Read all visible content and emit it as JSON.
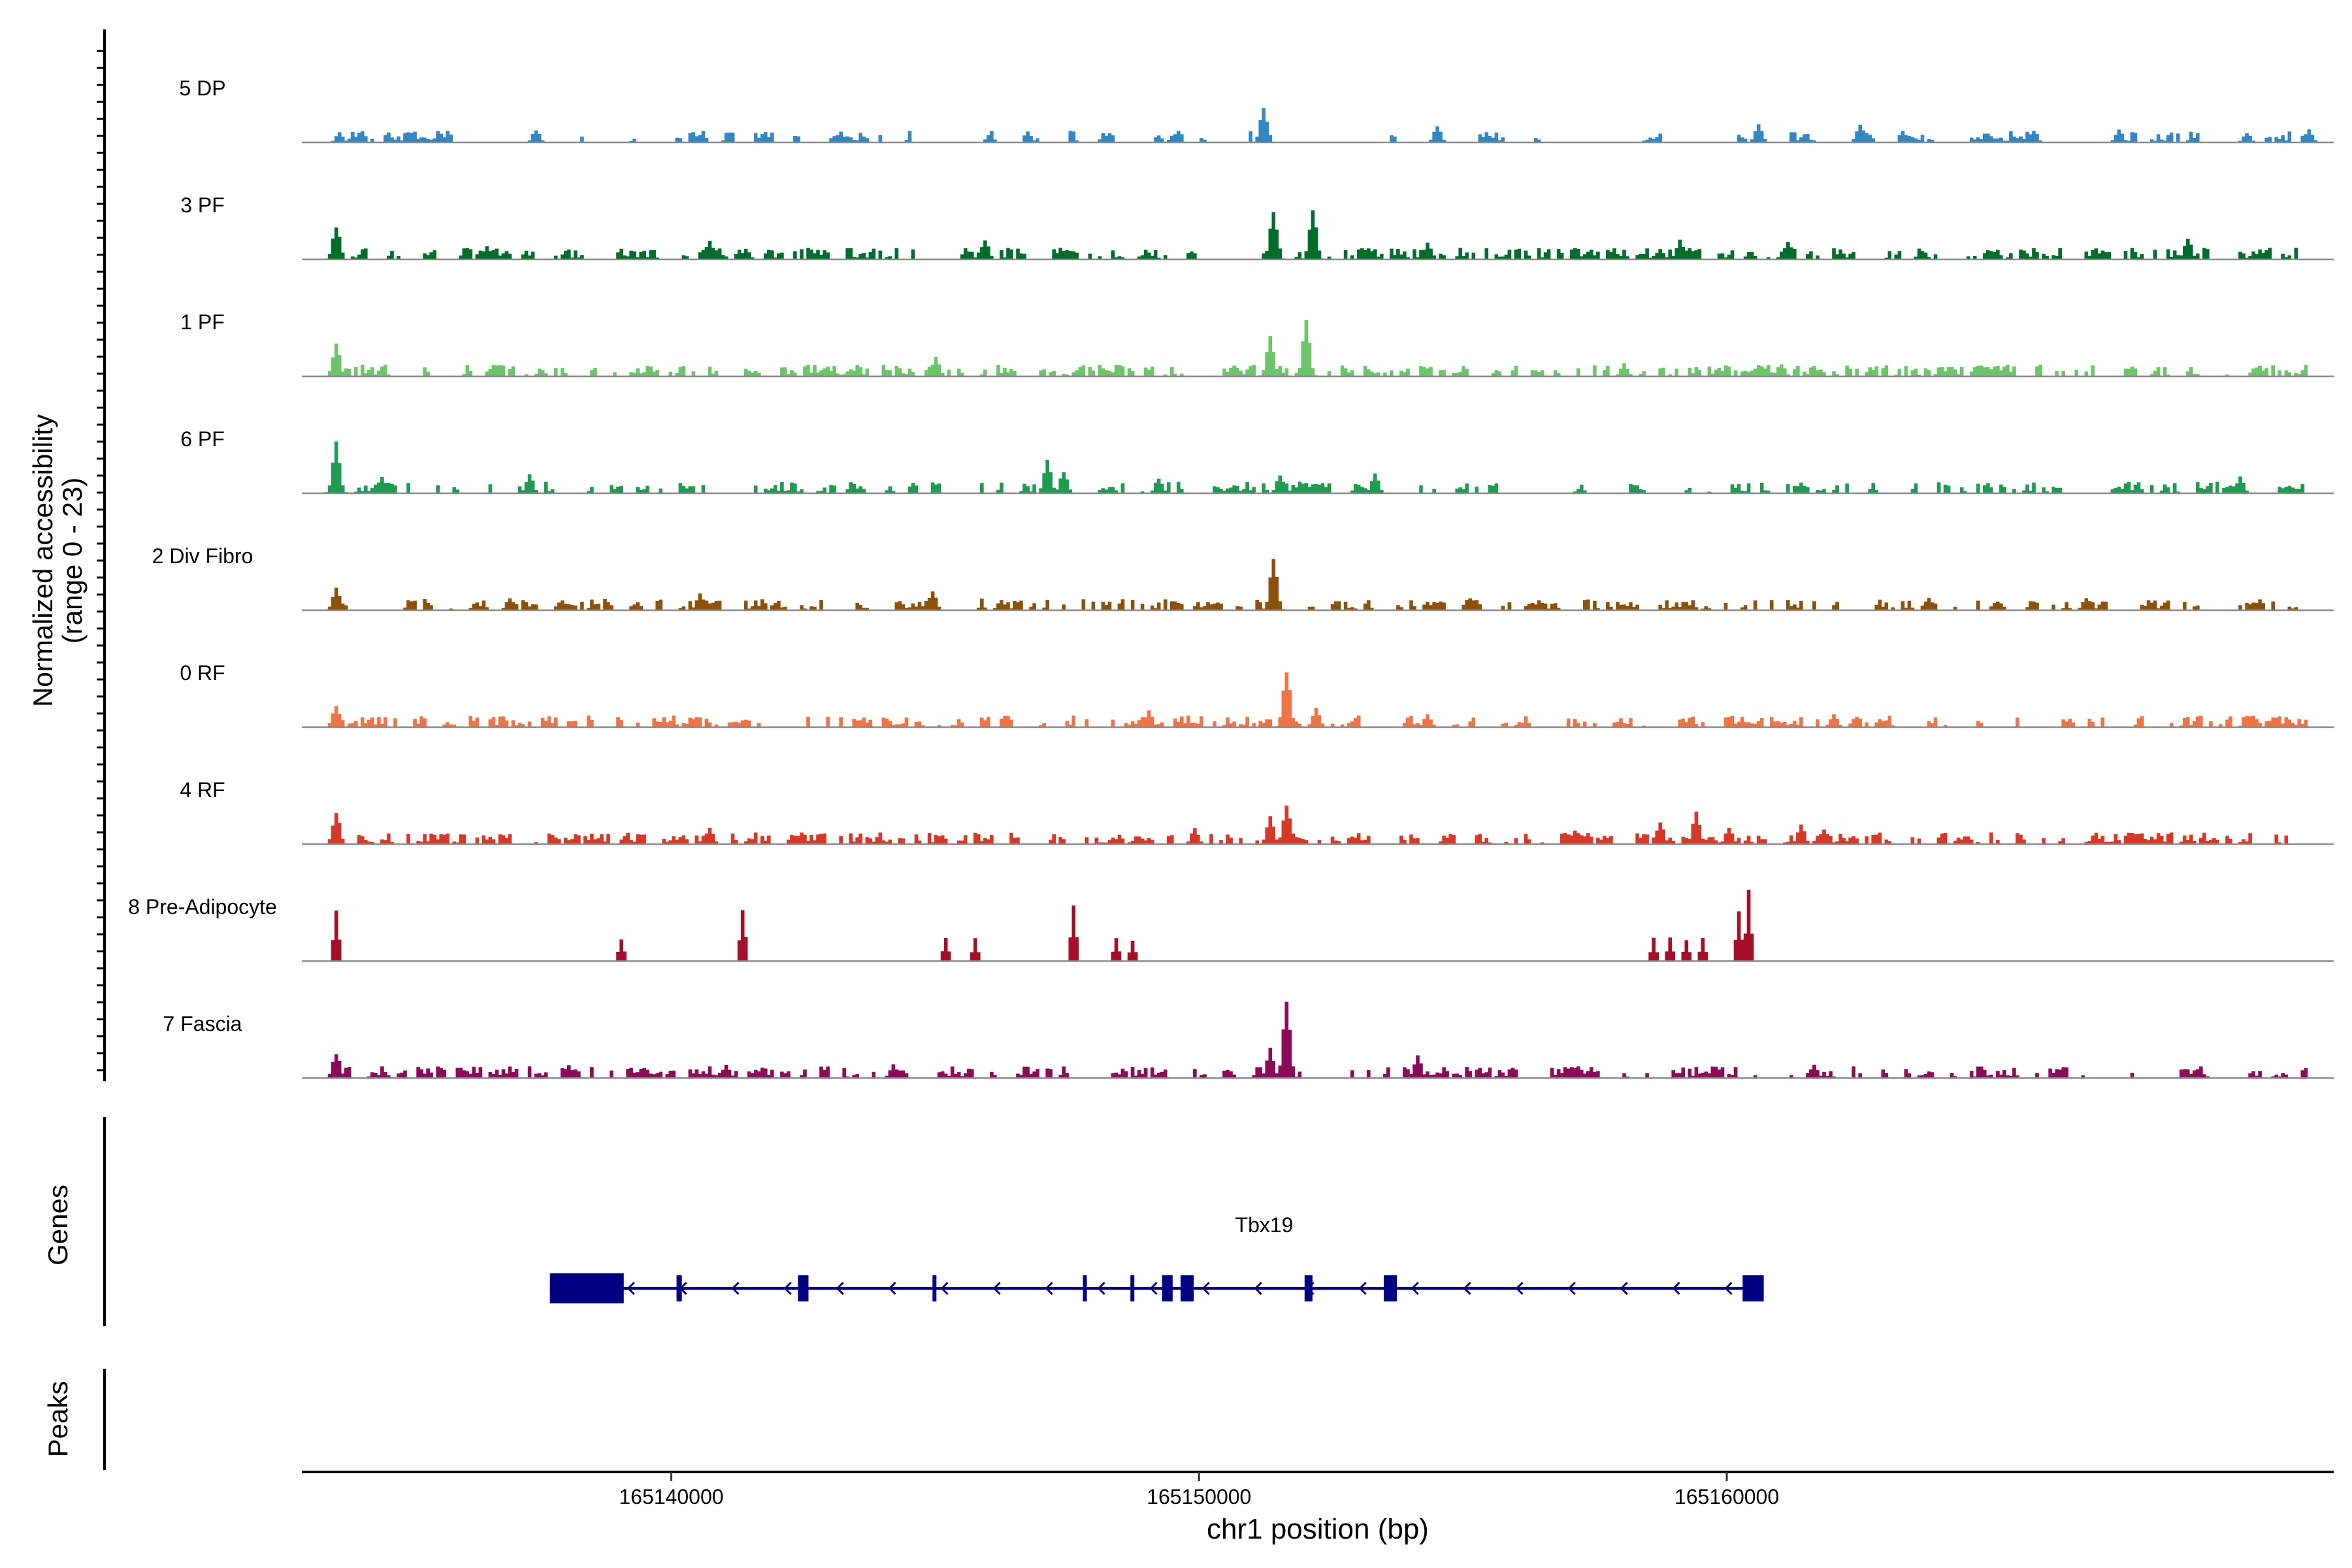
{
  "chart_data": {
    "type": "area",
    "title": "",
    "ylabel_line1": "Normalized accessibility",
    "ylabel_line2": "(range 0 - 23)",
    "xlabel": "chr1 position (bp)",
    "y_range": [
      0,
      23
    ],
    "x_range": [
      165133000,
      165171500
    ],
    "x_ticks": [
      165140000,
      165150000,
      165160000
    ],
    "tracks": [
      {
        "name": "5 DP",
        "color": "#3288c4",
        "seed": 11,
        "density": 0.18,
        "peaks": [
          [
            165133700,
            3
          ],
          [
            165137400,
            4
          ],
          [
            165151200,
            11
          ],
          [
            165154500,
            5
          ],
          [
            165160600,
            6
          ],
          [
            165162500,
            6
          ],
          [
            165165800,
            4
          ],
          [
            165167400,
            4
          ],
          [
            165169800,
            3
          ],
          [
            165171000,
            4
          ]
        ]
      },
      {
        "name": "3 PF",
        "color": "#006d2c",
        "seed": 23,
        "density": 0.6,
        "peaks": [
          [
            165133600,
            11
          ],
          [
            165140700,
            6
          ],
          [
            165145900,
            6
          ],
          [
            165151400,
            16
          ],
          [
            165152100,
            16
          ],
          [
            165154300,
            5
          ],
          [
            165159100,
            6
          ],
          [
            165161100,
            6
          ],
          [
            165168700,
            7
          ],
          [
            165136500,
            4
          ]
        ]
      },
      {
        "name": "1 PF",
        "color": "#6cc56a",
        "seed": 37,
        "density": 0.62,
        "peaks": [
          [
            165133600,
            10
          ],
          [
            165145000,
            6
          ],
          [
            165151300,
            13
          ],
          [
            165152000,
            17
          ],
          [
            165158000,
            4
          ],
          [
            165161000,
            4
          ],
          [
            165134500,
            3
          ]
        ]
      },
      {
        "name": "6 PF",
        "color": "#1f9b52",
        "seed": 41,
        "density": 0.35,
        "peaks": [
          [
            165133600,
            16
          ],
          [
            165134500,
            5
          ],
          [
            165137300,
            6
          ],
          [
            165147100,
            10
          ],
          [
            165147400,
            7
          ],
          [
            165149200,
            5
          ],
          [
            165151500,
            6
          ],
          [
            165153300,
            6
          ],
          [
            165169700,
            5
          ]
        ]
      },
      {
        "name": "2 Div Fibro",
        "color": "#8c510a",
        "seed": 53,
        "density": 0.55,
        "peaks": [
          [
            165133600,
            7
          ],
          [
            165136900,
            4
          ],
          [
            165140500,
            5
          ],
          [
            165144900,
            6
          ],
          [
            165151400,
            17
          ],
          [
            165155100,
            4
          ],
          [
            165163800,
            4
          ],
          [
            165166800,
            4
          ]
        ]
      },
      {
        "name": "0 RF",
        "color": "#f07446",
        "seed": 67,
        "density": 0.52,
        "peaks": [
          [
            165133600,
            7
          ],
          [
            165149000,
            5
          ],
          [
            165151600,
            19
          ],
          [
            165152200,
            6
          ],
          [
            165154300,
            4
          ],
          [
            165162000,
            4
          ],
          [
            165170300,
            3
          ]
        ]
      },
      {
        "name": "4 RF",
        "color": "#d93727",
        "seed": 79,
        "density": 0.55,
        "peaks": [
          [
            165133600,
            10
          ],
          [
            165140700,
            5
          ],
          [
            165149900,
            5
          ],
          [
            165151300,
            9
          ],
          [
            165151600,
            12
          ],
          [
            165157100,
            4
          ],
          [
            165158700,
            7
          ],
          [
            165159400,
            10
          ],
          [
            165160000,
            5
          ],
          [
            165161400,
            6
          ],
          [
            165161800,
            5
          ]
        ]
      },
      {
        "name": "8 Pre-Adipocyte",
        "color": "#a50f28",
        "seed": 91,
        "density": 0.0,
        "peaks": [
          [
            165133600,
            17
          ],
          [
            165139000,
            7
          ],
          [
            165141300,
            17
          ],
          [
            165145200,
            7
          ],
          [
            165145700,
            7
          ],
          [
            165147600,
            17
          ],
          [
            165148400,
            7
          ],
          [
            165148700,
            7
          ],
          [
            165158600,
            7
          ],
          [
            165158900,
            7
          ],
          [
            165159200,
            7
          ],
          [
            165159500,
            7
          ],
          [
            165160200,
            16
          ],
          [
            165160400,
            22
          ]
        ]
      },
      {
        "name": "7 Fascia",
        "color": "#8c0b59",
        "seed": 101,
        "density": 0.42,
        "peaks": [
          [
            165133600,
            8
          ],
          [
            165138000,
            4
          ],
          [
            165141000,
            4
          ],
          [
            165144200,
            4
          ],
          [
            165151600,
            23
          ],
          [
            165151300,
            9
          ],
          [
            165154100,
            7
          ],
          [
            165161600,
            4
          ]
        ]
      }
    ],
    "genes": {
      "label": "Genes",
      "name": "Tbx19",
      "start": 165137700,
      "end": 165160700,
      "strand": "-",
      "exons": [
        [
          165137700,
          165139100
        ],
        [
          165140100,
          165140200
        ],
        [
          165142400,
          165142600
        ],
        [
          165144950,
          165145000
        ],
        [
          165147800,
          165147850
        ],
        [
          165148700,
          165148750
        ],
        [
          165149300,
          165149500
        ],
        [
          165149650,
          165149900
        ],
        [
          165152000,
          165152150
        ],
        [
          165153500,
          165153750
        ],
        [
          165160300,
          165160700
        ]
      ]
    },
    "peaks_track": {
      "label": "Peaks",
      "regions": []
    }
  }
}
